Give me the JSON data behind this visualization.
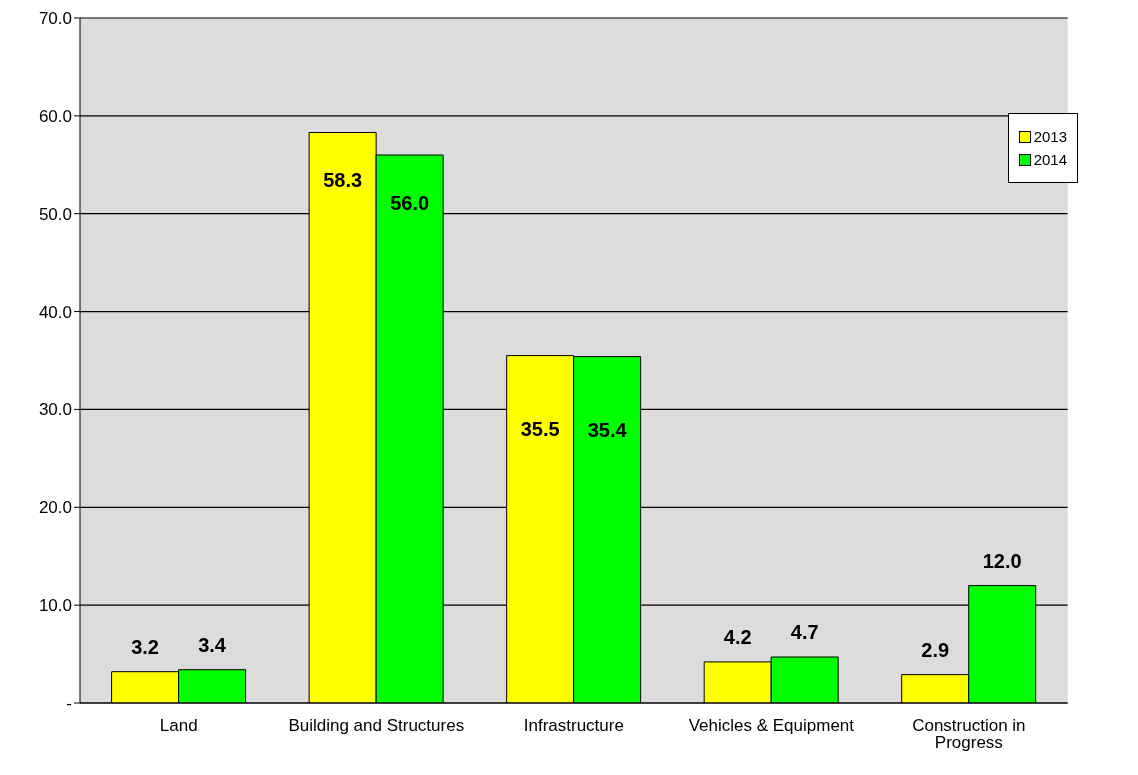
{
  "chart_data": {
    "type": "bar",
    "categories": [
      "Land",
      "Building and Structures",
      "Infrastructure",
      "Vehicles & Equipment",
      "Construction in Progress"
    ],
    "series": [
      {
        "name": "2013",
        "color": "#ffff00",
        "values": [
          3.2,
          58.3,
          35.5,
          4.2,
          2.9
        ],
        "value_labels": [
          "3.2",
          "58.3",
          "35.5",
          "4.2",
          "2.9"
        ]
      },
      {
        "name": "2014",
        "color": "#00ff00",
        "values": [
          3.4,
          56.0,
          35.4,
          4.7,
          12.0
        ],
        "value_labels": [
          "3.4",
          "56.0",
          "35.4",
          "4.7",
          "12.0"
        ]
      }
    ],
    "ylim": [
      0,
      70
    ],
    "yticks": [
      {
        "value": 0,
        "label": "-"
      },
      {
        "value": 10,
        "label": "10.0"
      },
      {
        "value": 20,
        "label": "20.0"
      },
      {
        "value": 30,
        "label": "30.0"
      },
      {
        "value": 40,
        "label": "40.0"
      },
      {
        "value": 50,
        "label": "50.0"
      },
      {
        "value": 60,
        "label": "60.0"
      },
      {
        "value": 70,
        "label": "70.0"
      }
    ],
    "grid": "y",
    "legend": "top right"
  }
}
